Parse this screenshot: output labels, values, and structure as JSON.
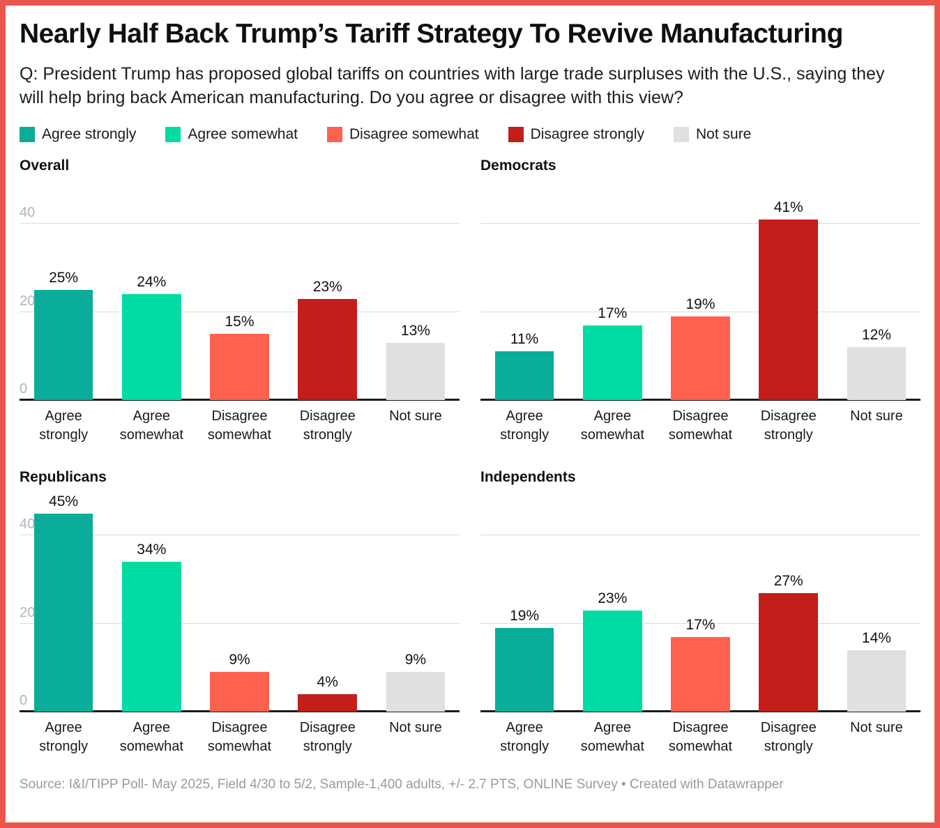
{
  "header": {
    "title": "Nearly Half Back Trump’s Tariff Strategy To Revive Manufacturing",
    "subtitle": "Q: President Trump has proposed global tariffs on countries with large trade surpluses with the U.S., saying they will help bring back American manufacturing. Do you agree or disagree with this view?"
  },
  "chart_data": {
    "type": "bar",
    "layout": "small-multiples-2x2",
    "categories": [
      "Agree strongly",
      "Agree somewhat",
      "Disagree somewhat",
      "Disagree strongly",
      "Not sure"
    ],
    "unit": "%",
    "ylim": [
      0,
      50
    ],
    "yticks": [
      0,
      20,
      40
    ],
    "grid": true,
    "legend_position": "top",
    "axis_labels_shown_on": [
      "Overall",
      "Republicans"
    ],
    "bar_colors": [
      "#0aad99",
      "#00dca4",
      "#ff6150",
      "#c41e1a",
      "#e0e0e0"
    ],
    "series": [
      {
        "name": "Overall",
        "values": [
          25,
          24,
          15,
          23,
          13
        ],
        "labels": [
          "25%",
          "24%",
          "15%",
          "23%",
          "13%"
        ]
      },
      {
        "name": "Democrats",
        "values": [
          11,
          17,
          19,
          41,
          12
        ],
        "labels": [
          "11%",
          "17%",
          "19%",
          "41%",
          "12%"
        ]
      },
      {
        "name": "Republicans",
        "values": [
          45,
          34,
          9,
          4,
          9
        ],
        "labels": [
          "45%",
          "34%",
          "9%",
          "4%",
          "9%"
        ]
      },
      {
        "name": "Independents",
        "values": [
          19,
          23,
          17,
          27,
          14
        ],
        "labels": [
          "19%",
          "23%",
          "17%",
          "27%",
          "14%"
        ]
      }
    ]
  },
  "colors": {
    "frame_border": "#eb564c",
    "gridline": "#dcdcdc",
    "baseline": "#1a1a1a",
    "tick_text": "#b3b3b3",
    "footer_text": "#9a9a9a"
  },
  "footer": {
    "source": "Source: I&I/TIPP Poll- May 2025, Field 4/30 to 5/2, Sample-1,400 adults, +/- 2.7 PTS, ONLINE Survey • Created with Datawrapper"
  }
}
